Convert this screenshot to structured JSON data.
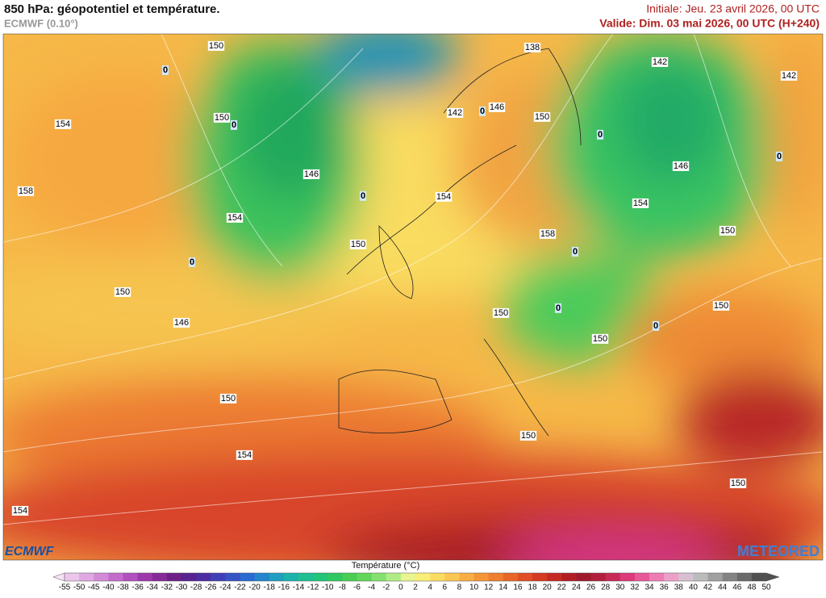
{
  "header": {
    "title": "850 hPa: géopotentiel et température.",
    "model": "ECMWF (0.10°)",
    "initial": "Initiale: Jeu. 23 avril 2026, 00 UTC",
    "valid": "Valide: Dim. 03 mai 2026, 00 UTC (H+240)"
  },
  "map": {
    "isoline_labels": [
      150,
      138,
      142,
      142,
      0,
      154,
      150,
      0,
      142,
      0,
      146,
      150,
      0,
      146,
      158,
      0,
      154,
      146,
      0,
      154,
      154,
      150,
      158,
      0,
      150,
      0,
      150,
      150,
      0,
      150,
      146,
      0,
      150,
      150,
      154,
      150,
      150,
      154
    ],
    "logo_left": "ECMWF",
    "logo_right": "METEORED"
  },
  "colorbar": {
    "title": "Température (°C)",
    "ticks": [
      -55,
      -50,
      -45,
      -40,
      -38,
      -36,
      -34,
      -32,
      -30,
      -28,
      -26,
      -24,
      -22,
      -20,
      -18,
      -16,
      -14,
      -12,
      -10,
      -8,
      -6,
      -4,
      -2,
      0,
      2,
      4,
      6,
      8,
      10,
      12,
      14,
      16,
      18,
      20,
      22,
      24,
      26,
      28,
      30,
      32,
      34,
      36,
      38,
      40,
      42,
      44,
      46,
      48,
      50
    ],
    "colors": [
      "#f6e2f6",
      "#ecc6ec",
      "#e0a8e2",
      "#d38ad6",
      "#c46ccb",
      "#b250bd",
      "#9c38ab",
      "#862a98",
      "#6c1f85",
      "#5a2290",
      "#4c2ea2",
      "#4040b6",
      "#3653c6",
      "#2a6ad2",
      "#2385cc",
      "#1f9ec0",
      "#1cb2ac",
      "#1ebf92",
      "#22c479",
      "#2fc860",
      "#48ce55",
      "#62d65a",
      "#86e070",
      "#b0ec86",
      "#e8f590",
      "#f8ee7a",
      "#fbdc62",
      "#fbc652",
      "#f8ae44",
      "#f49638",
      "#ef7e2e",
      "#e86628",
      "#e04e24",
      "#d53a22",
      "#c52a22",
      "#b01e24",
      "#a01a2e",
      "#b0203c",
      "#c82a58",
      "#dc3a78",
      "#e85898",
      "#ee7cb4",
      "#eca0c8",
      "#d8c0d0",
      "#bcbcbc",
      "#a0a0a0",
      "#848484",
      "#6a6a6a",
      "#505050"
    ]
  }
}
